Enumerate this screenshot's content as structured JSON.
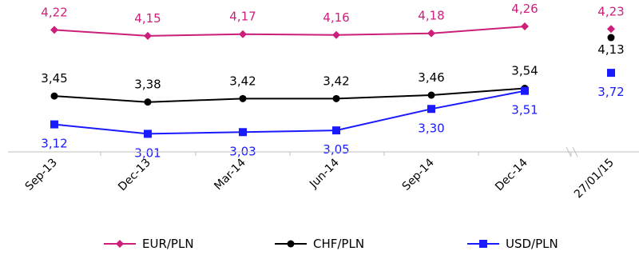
{
  "chart_data": {
    "type": "line",
    "categories": [
      "Sep-13",
      "Dec-13",
      "Mar-14",
      "Jun-14",
      "Sep-14",
      "Dec-14",
      "27/01/15"
    ],
    "gap_before_last": true,
    "series": [
      {
        "name": "EUR/PLN",
        "color": "#cc1f7a",
        "marker": "diamond",
        "values": [
          4.22,
          4.15,
          4.17,
          4.16,
          4.18,
          4.26,
          4.23
        ],
        "labels": [
          "4,22",
          "4,15",
          "4,17",
          "4,16",
          "4,18",
          "4,26",
          "4,23"
        ],
        "label_position": "above"
      },
      {
        "name": "CHF/PLN",
        "color": "#000000",
        "marker": "circle",
        "values": [
          3.45,
          3.38,
          3.42,
          3.42,
          3.46,
          3.54,
          4.13
        ],
        "labels": [
          "3,45",
          "3,38",
          "3,42",
          "3,42",
          "3,46",
          "3,54",
          "4,13"
        ],
        "label_position": "above"
      },
      {
        "name": "USD/PLN",
        "color": "#1a1aff",
        "marker": "square",
        "values": [
          3.12,
          3.01,
          3.03,
          3.05,
          3.3,
          3.51,
          3.72
        ],
        "labels": [
          "3,12",
          "3,01",
          "3,03",
          "3,05",
          "3,30",
          "3,51",
          "3,72"
        ],
        "label_position": "below"
      }
    ],
    "title": "",
    "xlabel": "",
    "ylabel": "",
    "grid": false,
    "legend_position": "bottom"
  }
}
